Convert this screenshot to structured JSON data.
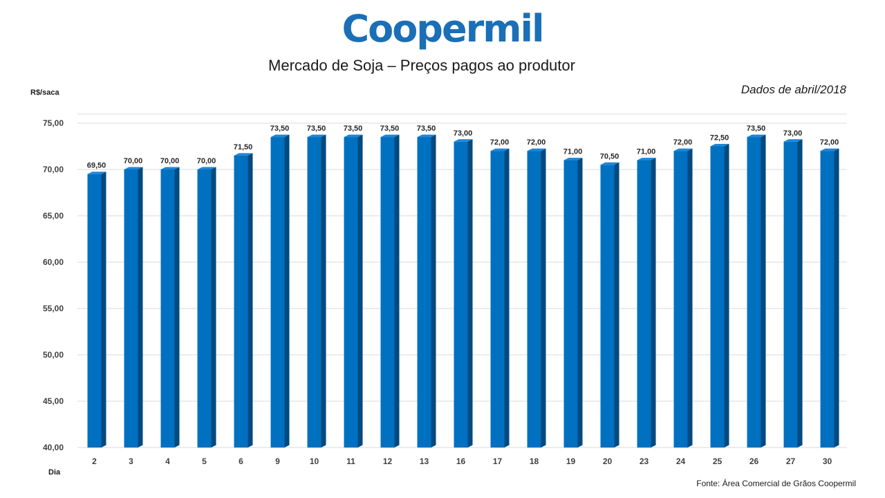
{
  "brand": {
    "name": "Coopermil",
    "color": "#1a6fb6"
  },
  "chart_data": {
    "type": "bar",
    "title": "Mercado de Soja – Preços pagos ao produtor",
    "subtitle": "Dados de abril/2018",
    "xlabel": "Dia",
    "ylabel": "R$/saca",
    "source": "Fonte:  Área Comercial de Grãos Coopermil",
    "ylim": [
      40,
      75
    ],
    "yticks": [
      "40,00",
      "45,00",
      "50,00",
      "55,00",
      "60,00",
      "65,00",
      "70,00",
      "75,00"
    ],
    "grid": true,
    "bar_style": "3d",
    "colors": {
      "bar": "#0070c0",
      "bar_side": "#004a80",
      "bar_top": "#1f86d6",
      "grid": "#d9d9d9"
    },
    "categories": [
      "2",
      "3",
      "4",
      "5",
      "6",
      "9",
      "10",
      "11",
      "12",
      "13",
      "16",
      "17",
      "18",
      "19",
      "20",
      "23",
      "24",
      "25",
      "26",
      "27",
      "30"
    ],
    "values": [
      69.5,
      70.0,
      70.0,
      70.0,
      71.5,
      73.5,
      73.5,
      73.5,
      73.5,
      73.5,
      73.0,
      72.0,
      72.0,
      71.0,
      70.5,
      71.0,
      72.0,
      72.5,
      73.5,
      73.0,
      72.0
    ],
    "value_labels": [
      "69,50",
      "70,00",
      "70,00",
      "70,00",
      "71,50",
      "73,50",
      "73,50",
      "73,50",
      "73,50",
      "73,50",
      "73,00",
      "72,00",
      "72,00",
      "71,00",
      "70,50",
      "71,00",
      "72,00",
      "72,50",
      "73,50",
      "73,00",
      "72,00"
    ]
  }
}
